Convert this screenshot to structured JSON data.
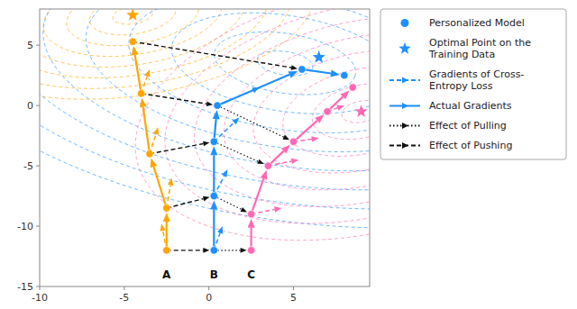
{
  "chart_data": {
    "type": "scatter",
    "xlim": [
      -10.0,
      9.5
    ],
    "ylim": [
      -15,
      8
    ],
    "xticks": [
      -10,
      -5,
      0,
      5
    ],
    "yticks": [
      -15,
      -10,
      -5,
      0,
      5
    ],
    "series": [
      {
        "color": "#FFA500",
        "marker": "circle",
        "line_style": "solid",
        "x": [
          -2.5,
          -2.5,
          -3.5,
          -4.0,
          -4.5
        ],
        "y": [
          -12.0,
          -8.5,
          -4.0,
          1.0,
          5.3
        ],
        "star": {
          "x": -4.5,
          "y": 7.5
        },
        "gradients": {
          "x": [
            -2.5,
            -2.5,
            -3.5,
            -4.0
          ],
          "y": [
            -12.0,
            -8.5,
            -4.0,
            1.0
          ],
          "x_end": [
            -2.8,
            -2.2,
            -3.0,
            -3.5
          ],
          "y_end": [
            -9.8,
            -6.0,
            -1.8,
            3.0
          ]
        },
        "contours": {
          "x": -4.5,
          "y": 7.5,
          "angle": 15,
          "widths": [
            2.4,
            5.2,
            8.0,
            10.8,
            13.6,
            16.4,
            19.2,
            22.0
          ],
          "heights": [
            1.44,
            3.12,
            4.8,
            6.48,
            8.16,
            9.84,
            11.52,
            13.2
          ]
        }
      },
      {
        "color": "#1E90FF",
        "marker": "circle",
        "line_style": "solid",
        "x": [
          0.3,
          0.3,
          0.3,
          0.5,
          5.5,
          8.0
        ],
        "y": [
          -12.0,
          -7.5,
          -3.0,
          0.0,
          3.0,
          2.5
        ],
        "star": {
          "x": 6.5,
          "y": 4.0
        },
        "gradients": {
          "x": [
            0.3,
            0.3,
            0.3,
            0.5
          ],
          "y": [
            -12.0,
            -7.5,
            -3.0,
            0.0
          ],
          "x_end": [
            0.8,
            1.1,
            1.8,
            3.0
          ],
          "y_end": [
            -10.0,
            -5.3,
            -1.0,
            1.5
          ]
        },
        "contours": {
          "x": 4.5,
          "y": 3.5,
          "angle": -15,
          "widths": [
            3.36,
            8.54,
            13.72,
            18.9,
            24.08,
            29.26,
            34.44,
            39.62,
            44.8
          ],
          "heights": [
            1.92,
            4.88,
            7.84,
            10.8,
            13.76,
            16.72,
            19.68,
            22.64,
            25.6
          ]
        }
      },
      {
        "color": "#FF69B4",
        "marker": "circle",
        "line_style": "solid",
        "x": [
          2.5,
          2.5,
          3.5,
          5.0,
          7.0,
          8.5
        ],
        "y": [
          -12.0,
          -9.0,
          -5.0,
          -3.0,
          -0.5,
          1.5
        ],
        "star": {
          "x": 9.0,
          "y": -0.5
        },
        "gradients": {
          "x": [
            2.5,
            3.5,
            5.0,
            7.0
          ],
          "y": [
            -9.0,
            -5.0,
            -3.0,
            -0.5
          ],
          "x_end": [
            4.3,
            5.3,
            6.5,
            8.0
          ],
          "y_end": [
            -8.5,
            -4.5,
            -2.7,
            0.0
          ]
        },
        "contours": {
          "x": 9.0,
          "y": -0.5,
          "angle": 25,
          "widths": [
            2.4,
            6.057143,
            9.714286,
            13.371429,
            17.028571,
            20.685714,
            24.342857,
            28.0
          ],
          "heights": [
            1.68,
            4.24,
            6.8,
            9.36,
            11.92,
            14.48,
            17.04,
            19.6
          ]
        }
      }
    ],
    "pushing": {
      "from": 0,
      "to": 1,
      "indices": [
        0,
        1,
        2,
        3,
        4
      ],
      "color": "#111111",
      "line_style": "dashed"
    },
    "pulling": {
      "from": 1,
      "to": 2,
      "indices": [
        0,
        1,
        2,
        3
      ],
      "color": "#111111",
      "line_style": "dotted"
    },
    "annotations": [
      {
        "text": "A",
        "x": -2.5,
        "y": -13.5
      },
      {
        "text": "B",
        "x": 0.3,
        "y": -13.5
      },
      {
        "text": "C",
        "x": 2.5,
        "y": -13.5
      }
    ],
    "legend_entries": [
      {
        "label": "Personalized Model",
        "marker": "circle",
        "color": "#1E90FF"
      },
      {
        "label": "Optimal Point on the\nTraining Data",
        "marker": "star",
        "color": "#1E90FF"
      },
      {
        "label": "Gradients of Cross-\nEntropy Loss",
        "line_style": "dashed",
        "color": "#1E90FF"
      },
      {
        "label": "Actual Gradients",
        "line_style": "solid",
        "color": "#1E90FF"
      },
      {
        "label": "Effect of Pulling",
        "line_style": "dotted",
        "color": "#111111"
      },
      {
        "label": "Effect of Pushing",
        "line_style": "dashed",
        "color": "#111111"
      }
    ]
  }
}
